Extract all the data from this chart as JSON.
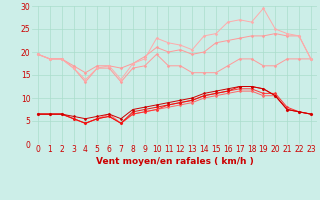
{
  "xlabel": "Vent moyen/en rafales ( km/h )",
  "background_color": "#cceee8",
  "grid_color": "#aaddcc",
  "x": [
    0,
    1,
    2,
    3,
    4,
    5,
    6,
    7,
    8,
    9,
    10,
    11,
    12,
    13,
    14,
    15,
    16,
    17,
    18,
    19,
    20,
    21,
    22,
    23
  ],
  "series": [
    {
      "color": "#ff9999",
      "linewidth": 0.7,
      "marker": "D",
      "markersize": 1.5,
      "data": [
        19.5,
        18.5,
        18.5,
        16.5,
        13.5,
        16.5,
        16.5,
        13.5,
        16.5,
        17.0,
        19.5,
        17.0,
        17.0,
        15.5,
        15.5,
        15.5,
        17.0,
        18.5,
        18.5,
        17.0,
        17.0,
        18.5,
        18.5,
        18.5
      ]
    },
    {
      "color": "#ff9999",
      "linewidth": 0.7,
      "marker": "D",
      "markersize": 1.5,
      "data": [
        19.5,
        18.5,
        18.5,
        17.0,
        15.5,
        17.0,
        17.0,
        16.5,
        17.5,
        19.0,
        21.0,
        20.0,
        20.5,
        19.5,
        20.0,
        22.0,
        22.5,
        23.0,
        23.5,
        23.5,
        24.0,
        23.5,
        23.5,
        18.5
      ]
    },
    {
      "color": "#ffaaaa",
      "linewidth": 0.7,
      "marker": "D",
      "markersize": 1.5,
      "data": [
        19.5,
        18.5,
        18.5,
        16.5,
        14.0,
        16.5,
        17.0,
        14.0,
        17.5,
        18.5,
        23.0,
        22.0,
        21.5,
        20.5,
        23.5,
        24.0,
        26.5,
        27.0,
        26.5,
        29.5,
        25.0,
        24.0,
        23.5,
        18.5
      ]
    },
    {
      "color": "#ff6666",
      "linewidth": 0.7,
      "marker": "D",
      "markersize": 1.5,
      "data": [
        6.5,
        6.5,
        6.5,
        5.5,
        4.5,
        5.5,
        6.5,
        4.5,
        6.5,
        7.0,
        7.5,
        8.0,
        8.5,
        9.0,
        10.0,
        10.5,
        11.0,
        11.5,
        11.5,
        10.5,
        10.5,
        7.5,
        7.0,
        6.5
      ]
    },
    {
      "color": "#ff3333",
      "linewidth": 0.7,
      "marker": "D",
      "markersize": 1.5,
      "data": [
        6.5,
        6.5,
        6.5,
        5.5,
        4.5,
        5.5,
        6.0,
        4.5,
        6.5,
        7.0,
        7.5,
        8.5,
        9.0,
        9.5,
        10.5,
        11.0,
        11.5,
        12.0,
        12.0,
        11.0,
        11.0,
        8.0,
        7.0,
        6.5
      ]
    },
    {
      "color": "#ee1111",
      "linewidth": 0.7,
      "marker": "D",
      "markersize": 1.5,
      "data": [
        6.5,
        6.5,
        6.5,
        5.5,
        4.5,
        5.5,
        6.0,
        4.5,
        7.0,
        7.5,
        8.0,
        8.5,
        9.0,
        9.5,
        10.5,
        11.0,
        11.5,
        12.5,
        12.5,
        12.0,
        10.5,
        7.5,
        7.0,
        6.5
      ]
    },
    {
      "color": "#cc0000",
      "linewidth": 0.7,
      "marker": "D",
      "markersize": 1.5,
      "data": [
        6.5,
        6.5,
        6.5,
        6.0,
        5.5,
        6.0,
        6.5,
        5.5,
        7.5,
        8.0,
        8.5,
        9.0,
        9.5,
        10.0,
        11.0,
        11.5,
        12.0,
        12.5,
        12.5,
        12.0,
        10.5,
        7.5,
        7.0,
        6.5
      ]
    }
  ],
  "arrow_color": "#cc0000",
  "ylim": [
    0,
    30
  ],
  "yticks": [
    0,
    5,
    10,
    15,
    20,
    25,
    30
  ],
  "xticks": [
    0,
    1,
    2,
    3,
    4,
    5,
    6,
    7,
    8,
    9,
    10,
    11,
    12,
    13,
    14,
    15,
    16,
    17,
    18,
    19,
    20,
    21,
    22,
    23
  ],
  "xlabel_color": "#cc0000",
  "xlabel_fontsize": 6.5,
  "tick_color": "#cc0000",
  "tick_fontsize": 5.5
}
